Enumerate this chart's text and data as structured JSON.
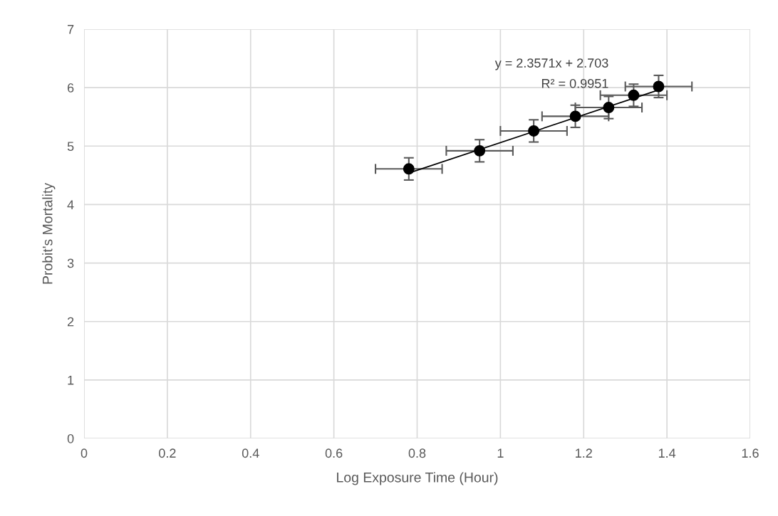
{
  "chart_data": {
    "type": "scatter",
    "xlabel": "Log Exposure Time (Hour)",
    "ylabel": "Probit's Mortality",
    "x": [
      0.78,
      0.95,
      1.08,
      1.18,
      1.26,
      1.32,
      1.38
    ],
    "series": [
      {
        "color": "#000000",
        "values": [
          4.61,
          4.92,
          5.26,
          5.51,
          5.66,
          5.87,
          6.02
        ],
        "errors": [
          0.19,
          0.19,
          0.19,
          0.19,
          0.19,
          0.19,
          0.19
        ],
        "xerrors": [
          0.08,
          0.08,
          0.08,
          0.08,
          0.08,
          0.08,
          0.08
        ]
      },
      {
        "type": "line",
        "color": "#000000",
        "marker": "none",
        "x": [
          0.78,
          1.38
        ],
        "values": [
          4.54,
          5.96
        ]
      }
    ],
    "marker": "circle",
    "annotations": [
      "y = 2.3571x + 2.703",
      "R² = 0.9951"
    ],
    "xlim": [
      0,
      1.6
    ],
    "ylim": [
      0,
      7
    ],
    "xticks": [
      0,
      {
        "value": 0.2,
        "label": "0.2"
      },
      {
        "value": 0.4,
        "label": "0.4"
      },
      {
        "value": 0.6,
        "label": "0.6"
      },
      {
        "value": 0.8,
        "label": "0.8"
      },
      1,
      {
        "value": 1.2,
        "label": "1.2"
      },
      {
        "value": 1.4,
        "label": "1.4"
      },
      {
        "value": 1.6,
        "label": "1.6"
      }
    ],
    "yticks": [
      0,
      1,
      2,
      3,
      4,
      5,
      6,
      7
    ],
    "grid": true,
    "legend": false
  }
}
